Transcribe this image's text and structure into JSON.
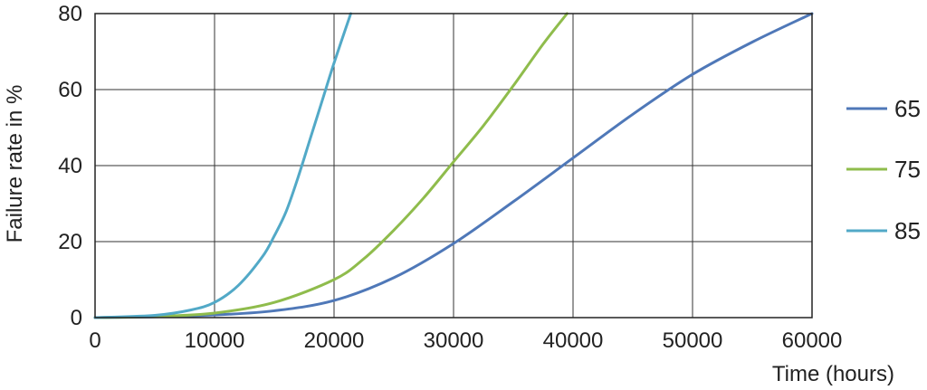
{
  "chart_data": {
    "type": "line",
    "xlabel": "Time (hours)",
    "ylabel": "Failure rate in %",
    "xlim": [
      0,
      60000
    ],
    "ylim": [
      0,
      80
    ],
    "xticks": [
      0,
      10000,
      20000,
      30000,
      40000,
      50000,
      60000
    ],
    "yticks": [
      0,
      20,
      40,
      60,
      80
    ],
    "grid": true,
    "legend_position": "right",
    "series": [
      {
        "name": "65",
        "color": "#4f78b8",
        "x": [
          0,
          5000,
          10000,
          15000,
          20000,
          25000,
          30000,
          35000,
          40000,
          45000,
          50000,
          55000,
          60000
        ],
        "y": [
          0,
          0.2,
          0.7,
          1.8,
          4.5,
          10.5,
          19.5,
          30.5,
          42,
          53.5,
          64,
          72.5,
          80
        ]
      },
      {
        "name": "75",
        "color": "#8fbc4c",
        "x": [
          0,
          5000,
          10000,
          15000,
          20000,
          22500,
          25000,
          27500,
          30000,
          32500,
          35000,
          37500,
          39500
        ],
        "y": [
          0,
          0.3,
          1.2,
          4,
          10,
          15.5,
          23,
          31.5,
          41,
          50.5,
          61,
          72,
          80
        ]
      },
      {
        "name": "85",
        "color": "#52a9c7",
        "x": [
          0,
          5000,
          8000,
          10000,
          12000,
          14000,
          15000,
          16000,
          17000,
          18000,
          19000,
          20000,
          21400
        ],
        "y": [
          0,
          0.6,
          2,
          4,
          8.5,
          16,
          21.5,
          28,
          37,
          47,
          57,
          67,
          80
        ]
      }
    ]
  }
}
